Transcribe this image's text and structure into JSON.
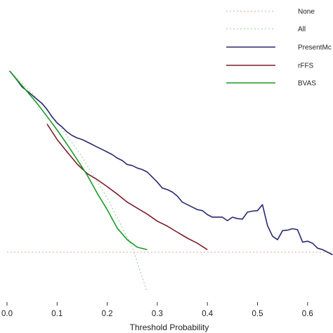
{
  "chart_data": {
    "type": "line",
    "xlabel": "Threshold Probability",
    "ylabel": "",
    "xlim": [
      0,
      0.65
    ],
    "ylim": [
      -0.1,
      0.4
    ],
    "grid": false,
    "legend_position": "top-right",
    "x_ticks": [
      {
        "value": 0.0,
        "label": "0.0"
      },
      {
        "value": 0.1,
        "label": "0.1"
      },
      {
        "value": 0.2,
        "label": "0.2"
      },
      {
        "value": 0.3,
        "label": "0.3"
      },
      {
        "value": 0.4,
        "label": "0.4"
      },
      {
        "value": 0.5,
        "label": "0.5"
      },
      {
        "value": 0.6,
        "label": "0.6"
      }
    ],
    "series": [
      {
        "name": "None",
        "color": "#e8a0a0",
        "dash": "2,3",
        "x": [
          0.0,
          0.65
        ],
        "y": [
          0.0,
          0.0
        ]
      },
      {
        "name": "All",
        "color": "#8fcb8f",
        "dash": "2,3",
        "x": [
          0.005,
          0.05,
          0.1,
          0.15,
          0.2,
          0.25,
          0.28
        ],
        "y": [
          0.362,
          0.318,
          0.26,
          0.19,
          0.108,
          0.01,
          -0.08
        ]
      },
      {
        "name": "PresentMc",
        "color": "#2a2a6e",
        "dash": "",
        "x": [
          0.005,
          0.015,
          0.03,
          0.045,
          0.06,
          0.07,
          0.08,
          0.09,
          0.1,
          0.11,
          0.12,
          0.13,
          0.14,
          0.15,
          0.16,
          0.17,
          0.18,
          0.19,
          0.2,
          0.21,
          0.22,
          0.23,
          0.24,
          0.25,
          0.26,
          0.27,
          0.28,
          0.29,
          0.3,
          0.31,
          0.32,
          0.33,
          0.34,
          0.35,
          0.36,
          0.37,
          0.38,
          0.39,
          0.4,
          0.41,
          0.42,
          0.43,
          0.44,
          0.45,
          0.46,
          0.47,
          0.48,
          0.49,
          0.5,
          0.51,
          0.52,
          0.53,
          0.54,
          0.55,
          0.56,
          0.57,
          0.58,
          0.59,
          0.6,
          0.61,
          0.62,
          0.63,
          0.64,
          0.65
        ],
        "y": [
          0.362,
          0.35,
          0.33,
          0.318,
          0.305,
          0.297,
          0.285,
          0.27,
          0.258,
          0.25,
          0.24,
          0.233,
          0.228,
          0.225,
          0.22,
          0.215,
          0.21,
          0.205,
          0.2,
          0.195,
          0.188,
          0.183,
          0.175,
          0.173,
          0.168,
          0.165,
          0.16,
          0.15,
          0.14,
          0.128,
          0.125,
          0.12,
          0.112,
          0.1,
          0.095,
          0.09,
          0.085,
          0.083,
          0.075,
          0.07,
          0.07,
          0.07,
          0.063,
          0.07,
          0.067,
          0.066,
          0.08,
          0.082,
          0.083,
          0.095,
          0.053,
          0.032,
          0.025,
          0.043,
          0.044,
          0.047,
          0.045,
          0.02,
          0.022,
          0.018,
          0.008,
          0.005,
          0.0,
          -0.005
        ]
      },
      {
        "name": "rFFS",
        "color": "#7a1e2a",
        "dash": "",
        "x": [
          0.08,
          0.1,
          0.12,
          0.14,
          0.16,
          0.18,
          0.2,
          0.22,
          0.24,
          0.26,
          0.28,
          0.3,
          0.32,
          0.34,
          0.36,
          0.38,
          0.4
        ],
        "y": [
          0.256,
          0.225,
          0.2,
          0.176,
          0.157,
          0.145,
          0.131,
          0.116,
          0.1,
          0.088,
          0.076,
          0.062,
          0.052,
          0.04,
          0.028,
          0.018,
          0.005
        ]
      },
      {
        "name": "BVAS",
        "color": "#1a9a2a",
        "dash": "",
        "x": [
          0.005,
          0.02,
          0.04,
          0.06,
          0.08,
          0.1,
          0.12,
          0.14,
          0.16,
          0.18,
          0.2,
          0.22,
          0.24,
          0.26,
          0.28
        ],
        "y": [
          0.362,
          0.344,
          0.321,
          0.297,
          0.271,
          0.244,
          0.215,
          0.185,
          0.154,
          0.118,
          0.085,
          0.048,
          0.025,
          0.01,
          0.005
        ]
      }
    ]
  }
}
